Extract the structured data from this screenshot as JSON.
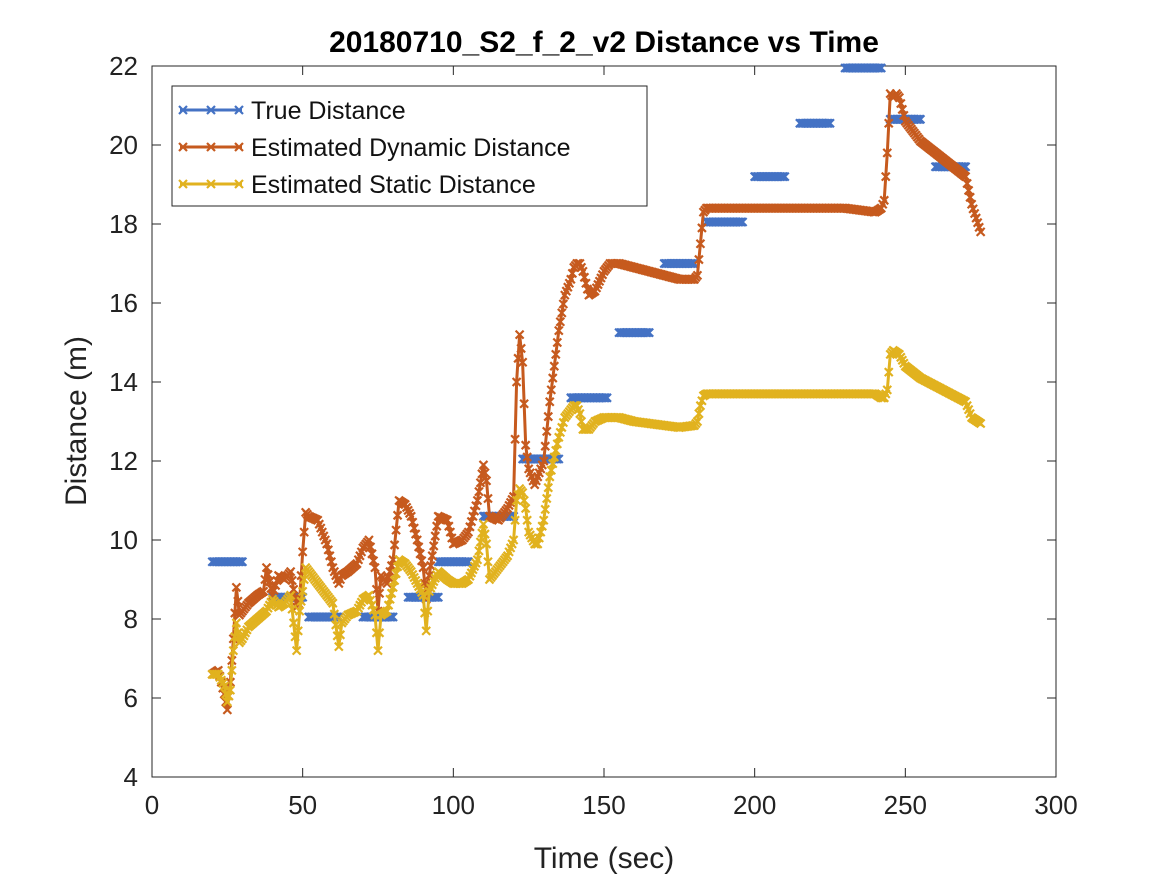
{
  "chart_data": {
    "type": "line",
    "title": "20180710_S2_f_2_v2 Distance vs Time",
    "xlabel": "Time (sec)",
    "ylabel": "Distance (m)",
    "xlim": [
      0,
      300
    ],
    "ylim": [
      4,
      22
    ],
    "xticks": [
      "0",
      "50",
      "100",
      "150",
      "200",
      "250",
      "300"
    ],
    "yticks": [
      "4",
      "6",
      "8",
      "10",
      "12",
      "14",
      "16",
      "18",
      "20",
      "22"
    ],
    "grid": false,
    "legend_position": "top-left",
    "series": [
      {
        "name": "True Distance",
        "color": "#4472C4",
        "segments": [
          {
            "x": [
              20,
              30
            ],
            "y": 9.45
          },
          {
            "x": [
              40,
              50
            ],
            "y": 8.55
          },
          {
            "x": [
              52,
              62
            ],
            "y": 8.05
          },
          {
            "x": [
              70,
              80
            ],
            "y": 8.05
          },
          {
            "x": [
              85,
              95
            ],
            "y": 8.55
          },
          {
            "x": [
              95,
              105
            ],
            "y": 9.45
          },
          {
            "x": [
              110,
              120
            ],
            "y": 10.6
          },
          {
            "x": [
              123,
              135
            ],
            "y": 12.05
          },
          {
            "x": [
              139,
              151
            ],
            "y": 13.6
          },
          {
            "x": [
              155,
              165
            ],
            "y": 15.25
          },
          {
            "x": [
              170,
              180
            ],
            "y": 17.0
          },
          {
            "x": [
              184,
              196
            ],
            "y": 18.05
          },
          {
            "x": [
              200,
              210
            ],
            "y": 19.2
          },
          {
            "x": [
              215,
              225
            ],
            "y": 20.55
          },
          {
            "x": [
              230,
              242
            ],
            "y": 21.95
          },
          {
            "x": [
              245,
              255
            ],
            "y": 20.65
          },
          {
            "x": [
              260,
              270
            ],
            "y": 19.45
          }
        ]
      },
      {
        "name": "Estimated Dynamic Distance",
        "color": "#C65A1E",
        "x": [
          20,
          22,
          24,
          25,
          26,
          27,
          28,
          29,
          30,
          32,
          35,
          37,
          38,
          40,
          42,
          44,
          46,
          48,
          49,
          50,
          51,
          52,
          55,
          58,
          60,
          62,
          63,
          65,
          68,
          70,
          72,
          74,
          75,
          76,
          78,
          80,
          82,
          84,
          86,
          88,
          90,
          91,
          92,
          95,
          98,
          100,
          103,
          105,
          108,
          110,
          111,
          112,
          115,
          118,
          120,
          121,
          122,
          123,
          124,
          125,
          127,
          128,
          130,
          132,
          135,
          137,
          139,
          140,
          141,
          142,
          143,
          145,
          147,
          150,
          152,
          155,
          160,
          165,
          170,
          175,
          180,
          181,
          182,
          183,
          184,
          190,
          200,
          210,
          220,
          230,
          240,
          242,
          243,
          244,
          245,
          246,
          247,
          248,
          250,
          255,
          260,
          265,
          270,
          272,
          275
        ],
        "y": [
          6.6,
          6.7,
          6.1,
          5.7,
          6.4,
          7.5,
          8.8,
          8.1,
          8.2,
          8.4,
          8.6,
          8.7,
          9.3,
          8.6,
          9.1,
          9.0,
          9.2,
          8.3,
          8.5,
          9.7,
          10.7,
          10.6,
          10.5,
          9.9,
          9.3,
          8.9,
          9.1,
          9.2,
          9.4,
          9.8,
          10.0,
          9.3,
          8.2,
          9.1,
          8.9,
          9.5,
          11.0,
          10.9,
          10.6,
          10.0,
          9.3,
          8.5,
          9.1,
          10.6,
          10.5,
          9.9,
          10.0,
          10.2,
          11.0,
          11.9,
          11.5,
          10.6,
          10.5,
          10.8,
          11.1,
          14.0,
          15.2,
          14.5,
          12.4,
          11.8,
          11.4,
          11.6,
          12.0,
          13.5,
          15.3,
          16.2,
          16.6,
          16.9,
          17.0,
          17.0,
          16.8,
          16.2,
          16.3,
          16.8,
          17.0,
          17.0,
          16.9,
          16.8,
          16.7,
          16.6,
          16.6,
          16.7,
          17.5,
          18.3,
          18.4,
          18.4,
          18.4,
          18.4,
          18.4,
          18.4,
          18.3,
          18.4,
          18.6,
          19.8,
          21.3,
          21.2,
          21.3,
          21.2,
          20.6,
          20.1,
          19.8,
          19.5,
          19.2,
          18.5,
          17.8
        ]
      },
      {
        "name": "Estimated Static Distance",
        "color": "#E1B21F",
        "x": [
          20,
          22,
          24,
          25,
          26,
          27,
          28,
          29,
          30,
          32,
          35,
          38,
          40,
          42,
          44,
          46,
          48,
          49,
          50,
          51,
          52,
          55,
          58,
          60,
          62,
          63,
          65,
          68,
          70,
          72,
          74,
          75,
          76,
          78,
          80,
          82,
          84,
          86,
          88,
          90,
          91,
          92,
          95,
          98,
          100,
          103,
          105,
          108,
          110,
          111,
          112,
          115,
          118,
          120,
          121,
          122,
          123,
          124,
          125,
          127,
          128,
          130,
          132,
          135,
          137,
          139,
          140,
          141,
          142,
          143,
          145,
          147,
          150,
          152,
          155,
          160,
          165,
          170,
          175,
          180,
          181,
          182,
          183,
          184,
          190,
          200,
          210,
          220,
          230,
          240,
          242,
          243,
          244,
          245,
          246,
          247,
          248,
          250,
          255,
          260,
          265,
          270,
          272,
          275
        ],
        "y": [
          6.6,
          6.6,
          6.3,
          5.9,
          6.2,
          7.2,
          7.9,
          7.4,
          7.5,
          7.8,
          8.0,
          8.2,
          8.5,
          8.3,
          8.4,
          8.6,
          7.2,
          8.2,
          8.7,
          9.3,
          9.2,
          8.9,
          8.6,
          8.4,
          7.3,
          7.9,
          8.1,
          8.2,
          8.5,
          8.6,
          8.1,
          7.2,
          8.1,
          8.2,
          8.8,
          9.5,
          9.4,
          9.2,
          8.9,
          8.6,
          7.7,
          8.7,
          9.2,
          9.0,
          8.9,
          8.9,
          9.0,
          9.5,
          10.4,
          9.9,
          9.0,
          9.3,
          9.6,
          10.0,
          11.0,
          11.3,
          11.2,
          10.8,
          10.2,
          9.9,
          9.9,
          10.5,
          11.6,
          12.6,
          13.1,
          13.3,
          13.4,
          13.4,
          13.2,
          12.8,
          12.8,
          13.0,
          13.1,
          13.1,
          13.1,
          13.0,
          12.95,
          12.9,
          12.85,
          12.9,
          13.0,
          13.4,
          13.65,
          13.7,
          13.7,
          13.7,
          13.7,
          13.7,
          13.7,
          13.7,
          13.6,
          13.6,
          13.8,
          14.7,
          14.8,
          14.75,
          14.7,
          14.4,
          14.1,
          13.9,
          13.7,
          13.5,
          13.1,
          12.95
        ]
      }
    ]
  }
}
